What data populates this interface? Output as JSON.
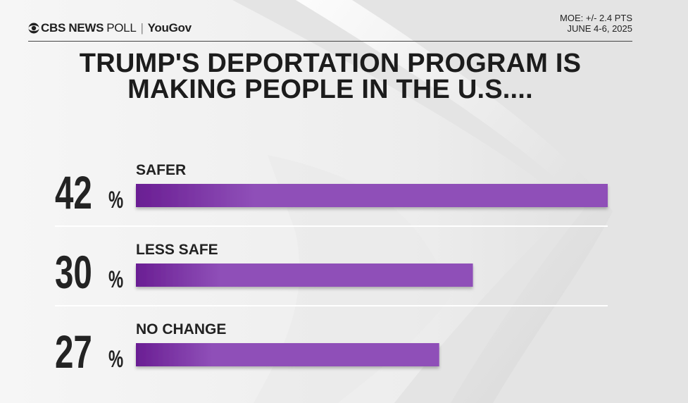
{
  "header": {
    "brand": "CBS NEWS",
    "poll": "POLL",
    "separator": "|",
    "partner": "YouGov",
    "moe": "MOE: +/- 2.4 PTS",
    "date": "JUNE 4-6, 2025"
  },
  "title": {
    "line1": "TRUMP'S DEPORTATION PROGRAM IS",
    "line2": "MAKING PEOPLE IN THE U.S...."
  },
  "colors": {
    "bar_dark": "#6a1e93",
    "bar_light": "#8f4fb8",
    "divider": "#ffffff"
  },
  "chart_data": {
    "type": "bar",
    "orientation": "horizontal",
    "title": "TRUMP'S DEPORTATION PROGRAM IS MAKING PEOPLE IN THE U.S....",
    "categories": [
      "SAFER",
      "LESS SAFE",
      "NO CHANGE"
    ],
    "values": [
      42,
      30,
      27
    ],
    "value_labels": [
      "42",
      "30",
      "27"
    ],
    "unit": "%",
    "xlim": [
      0,
      42
    ]
  }
}
